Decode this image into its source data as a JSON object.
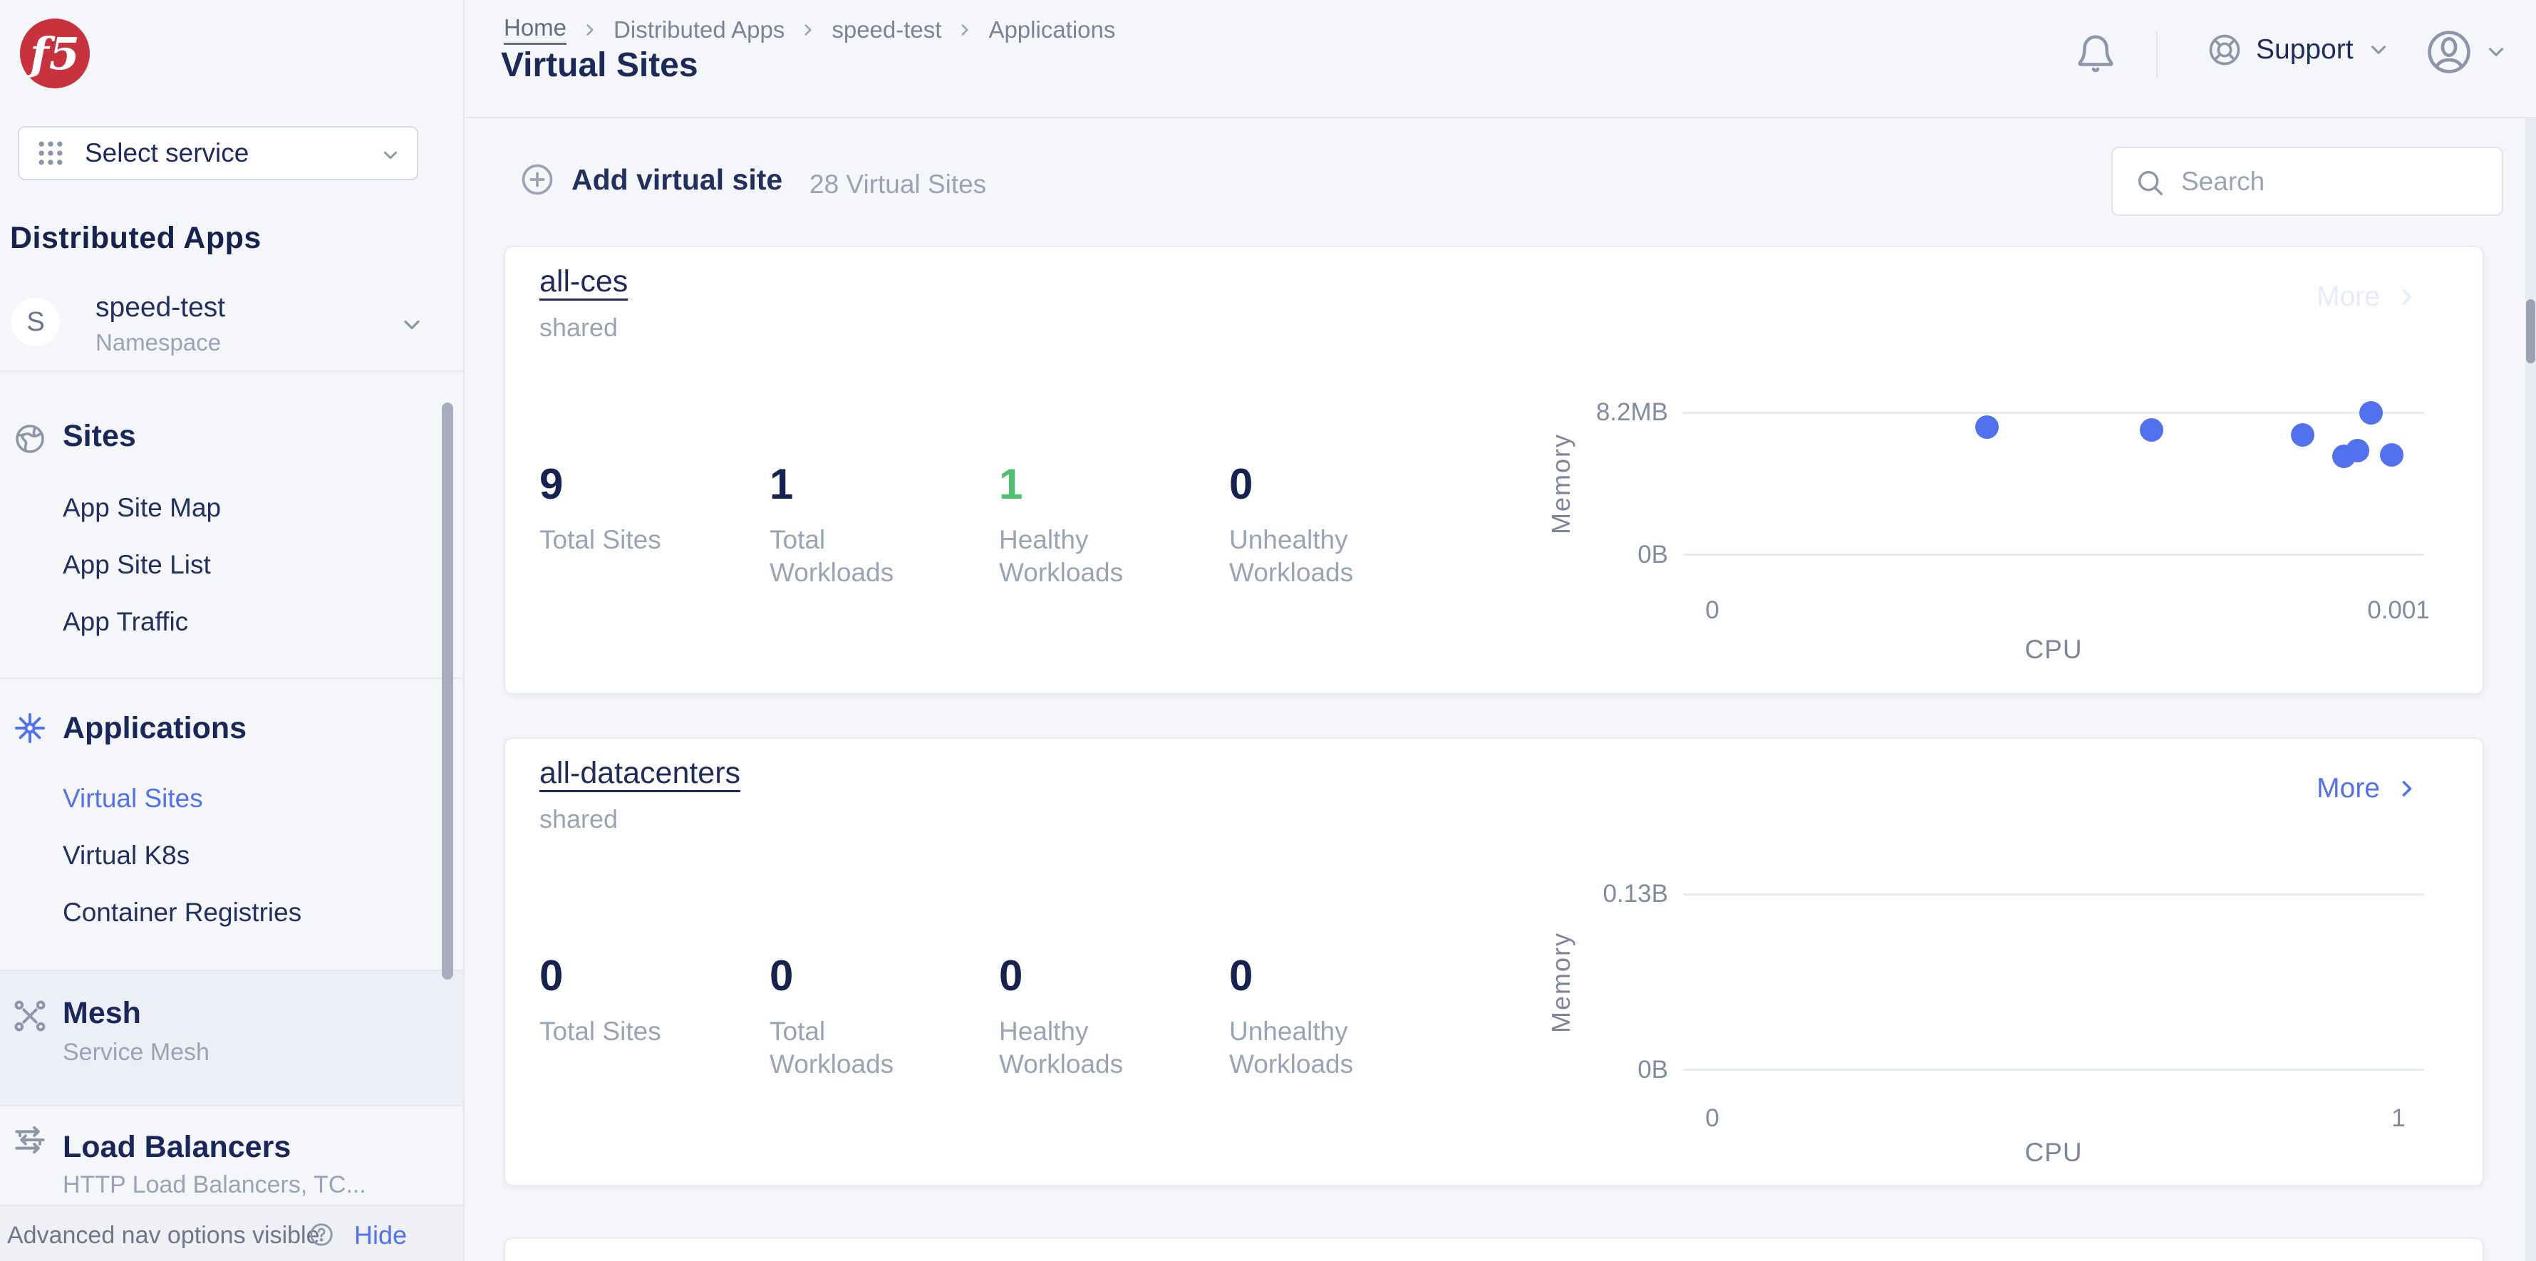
{
  "brand": {
    "logo_text": "f5",
    "logo_color": "#c8323c"
  },
  "colors": {
    "accent_blue": "#5271ef",
    "healthy_green": "#4fc06d",
    "navy": "#1e2b5c"
  },
  "sidebar": {
    "select_service_label": "Select service",
    "heading": "Distributed Apps",
    "namespace": {
      "initial": "S",
      "name": "speed-test",
      "type_label": "Namespace"
    },
    "sections": [
      {
        "title": "Sites",
        "icon": "globe-icon",
        "items": [
          {
            "label": "App Site Map"
          },
          {
            "label": "App Site List"
          },
          {
            "label": "App Traffic"
          }
        ]
      },
      {
        "title": "Applications",
        "icon": "helm-icon",
        "items": [
          {
            "label": "Virtual Sites",
            "active": true
          },
          {
            "label": "Virtual K8s"
          },
          {
            "label": "Container Registries"
          }
        ]
      },
      {
        "title": "Mesh",
        "icon": "mesh-icon",
        "subtitle": "Service Mesh"
      },
      {
        "title": "Load Balancers",
        "icon": "load-balancer-icon",
        "subtitle": "HTTP Load Balancers, TC..."
      }
    ],
    "footer": {
      "message": "Advanced nav options visible",
      "action_label": "Hide"
    }
  },
  "header": {
    "breadcrumbs": [
      "Home",
      "Distributed Apps",
      "speed-test",
      "Applications"
    ],
    "title": "Virtual Sites",
    "support_label": "Support"
  },
  "toolbar": {
    "add_button_label": "Add virtual site",
    "count_text": "28 Virtual Sites",
    "search_placeholder": "Search"
  },
  "cards": [
    {
      "title": "all-ces",
      "subtitle": "shared",
      "more_label": "More",
      "more_faint": true,
      "stats": [
        {
          "value": "9",
          "label": "Total Sites"
        },
        {
          "value": "1",
          "label": "Total Workloads"
        },
        {
          "value": "1",
          "label": "Healthy Workloads",
          "color": "#4fc06d"
        },
        {
          "value": "0",
          "label": "Unhealthy Workloads"
        }
      ],
      "chart": {
        "type": "scatter",
        "xlabel": "CPU",
        "ylabel": "Memory",
        "x_ticks": [
          "0",
          "0.001"
        ],
        "y_ticks": [
          "8.2MB",
          "0B"
        ],
        "xlim": [
          0,
          0.001
        ],
        "ylim": [
          0,
          8.2
        ],
        "y_unit": "MB",
        "points": [
          {
            "cpu": 0.0004,
            "mem": 7.38
          },
          {
            "cpu": 0.00064,
            "mem": 7.22
          },
          {
            "cpu": 0.00086,
            "mem": 6.93
          },
          {
            "cpu": 0.00092,
            "mem": 5.7
          },
          {
            "cpu": 0.00094,
            "mem": 6.03
          },
          {
            "cpu": 0.00096,
            "mem": 8.2
          },
          {
            "cpu": 0.00099,
            "mem": 5.78
          }
        ]
      }
    },
    {
      "title": "all-datacenters",
      "subtitle": "shared",
      "more_label": "More",
      "more_faint": false,
      "stats": [
        {
          "value": "0",
          "label": "Total Sites"
        },
        {
          "value": "0",
          "label": "Total Workloads"
        },
        {
          "value": "0",
          "label": "Healthy Workloads"
        },
        {
          "value": "0",
          "label": "Unhealthy Workloads"
        }
      ],
      "chart": {
        "type": "scatter",
        "xlabel": "CPU",
        "ylabel": "Memory",
        "x_ticks": [
          "0",
          "1"
        ],
        "y_ticks": [
          "0.13B",
          "0B"
        ],
        "xlim": [
          0,
          1
        ],
        "ylim": [
          0,
          0.13
        ],
        "y_unit": "B",
        "points": []
      }
    }
  ]
}
